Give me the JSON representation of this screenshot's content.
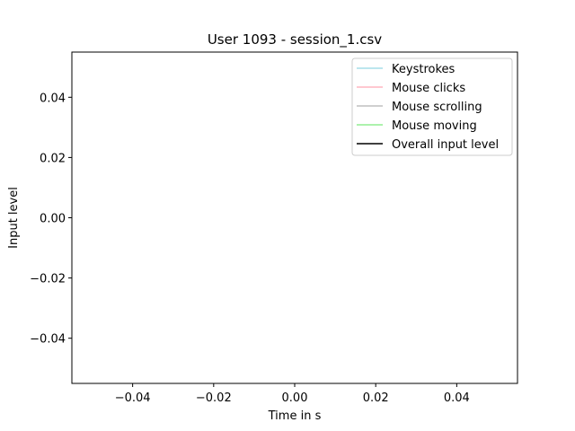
{
  "chart_data": {
    "type": "line",
    "title": "User 1093 - session_1.csv",
    "xlabel": "Time in s",
    "ylabel": "Input level",
    "xlim": [
      -0.055,
      0.055
    ],
    "ylim": [
      -0.055,
      0.055
    ],
    "x_ticks": [
      -0.04,
      -0.02,
      0.0,
      0.02,
      0.04
    ],
    "x_tick_labels": [
      "−0.04",
      "−0.02",
      "0.00",
      "0.02",
      "0.04"
    ],
    "y_ticks": [
      -0.04,
      -0.02,
      0.0,
      0.02,
      0.04
    ],
    "y_tick_labels": [
      "−0.04",
      "−0.02",
      "0.00",
      "0.02",
      "0.04"
    ],
    "grid": false,
    "legend_position": "top-right",
    "series": [
      {
        "name": "Keystrokes",
        "color": "#a6dde8",
        "x": [],
        "values": []
      },
      {
        "name": "Mouse clicks",
        "color": "#ffb6c1",
        "x": [],
        "values": []
      },
      {
        "name": "Mouse scrolling",
        "color": "#bfbfbf",
        "x": [],
        "values": []
      },
      {
        "name": "Mouse moving",
        "color": "#90ee90",
        "x": [],
        "values": []
      },
      {
        "name": "Overall input level",
        "color": "#000000",
        "x": [],
        "values": []
      }
    ]
  }
}
